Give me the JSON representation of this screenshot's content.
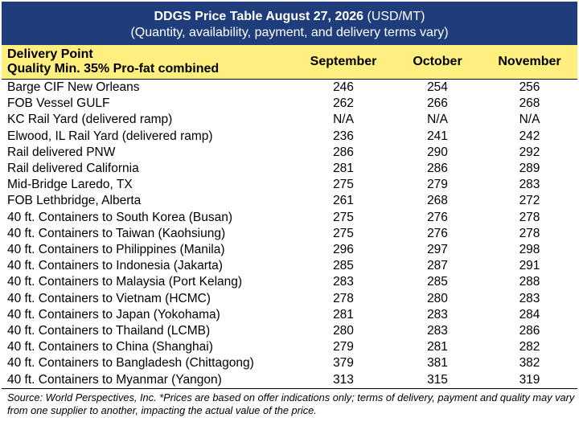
{
  "title": {
    "bold": "DDGS Price Table August 27, 2026",
    "unit": " (USD/MT)",
    "subtitle": "(Quantity, availability, payment, and delivery terms vary)"
  },
  "header": {
    "line1": "Delivery Point",
    "line2": "Quality Min. 35% Pro-fat combined",
    "months": [
      "September",
      "October",
      "November"
    ]
  },
  "rows": [
    {
      "name": "Barge CIF New Orleans",
      "v": [
        "246",
        "254",
        "256"
      ]
    },
    {
      "name": "FOB Vessel GULF",
      "v": [
        "262",
        "266",
        "268"
      ]
    },
    {
      "name": "KC Rail Yard (delivered ramp)",
      "v": [
        "N/A",
        "N/A",
        "N/A"
      ]
    },
    {
      "name": "Elwood, IL Rail Yard (delivered ramp)",
      "v": [
        "236",
        "241",
        "242"
      ]
    },
    {
      "name": "Rail delivered PNW",
      "v": [
        "286",
        "290",
        "292"
      ]
    },
    {
      "name": "Rail delivered California",
      "v": [
        "281",
        "286",
        "289"
      ]
    },
    {
      "name": "Mid-Bridge Laredo, TX",
      "v": [
        "275",
        "279",
        "283"
      ]
    },
    {
      "name": "FOB Lethbridge, Alberta",
      "v": [
        "261",
        "268",
        "272"
      ]
    },
    {
      "name": "40 ft. Containers to South Korea (Busan)",
      "v": [
        "275",
        "276",
        "278"
      ]
    },
    {
      "name": "40 ft. Containers to Taiwan (Kaohsiung)",
      "v": [
        "275",
        "276",
        "278"
      ]
    },
    {
      "name": "40 ft. Containers to Philippines (Manila)",
      "v": [
        "296",
        "297",
        "298"
      ]
    },
    {
      "name": "40 ft. Containers to Indonesia (Jakarta)",
      "v": [
        "285",
        "287",
        "291"
      ]
    },
    {
      "name": "40 ft. Containers to Malaysia (Port Kelang)",
      "v": [
        "283",
        "285",
        "288"
      ]
    },
    {
      "name": "40 ft. Containers to Vietnam (HCMC)",
      "v": [
        "278",
        "280",
        "283"
      ]
    },
    {
      "name": "40 ft. Containers to Japan (Yokohama)",
      "v": [
        "281",
        "283",
        "284"
      ]
    },
    {
      "name": "40 ft. Containers to Thailand (LCMB)",
      "v": [
        "280",
        "283",
        "286"
      ]
    },
    {
      "name": "40 ft. Containers to China (Shanghai)",
      "v": [
        "279",
        "281",
        "282"
      ]
    },
    {
      "name": "40 ft. Containers to Bangladesh (Chittagong)",
      "v": [
        "379",
        "381",
        "382"
      ]
    },
    {
      "name": "40 ft. Containers to Myanmar (Yangon)",
      "v": [
        "313",
        "315",
        "319"
      ]
    }
  ],
  "source": "Source: World Perspectives, Inc. *Prices are based on offer indications only; terms of delivery, payment and quality may vary from one supplier to another, impacting the actual value of the price.",
  "colors": {
    "title_bg": "#1f3d7a",
    "header_bg": "#ffef7f"
  }
}
